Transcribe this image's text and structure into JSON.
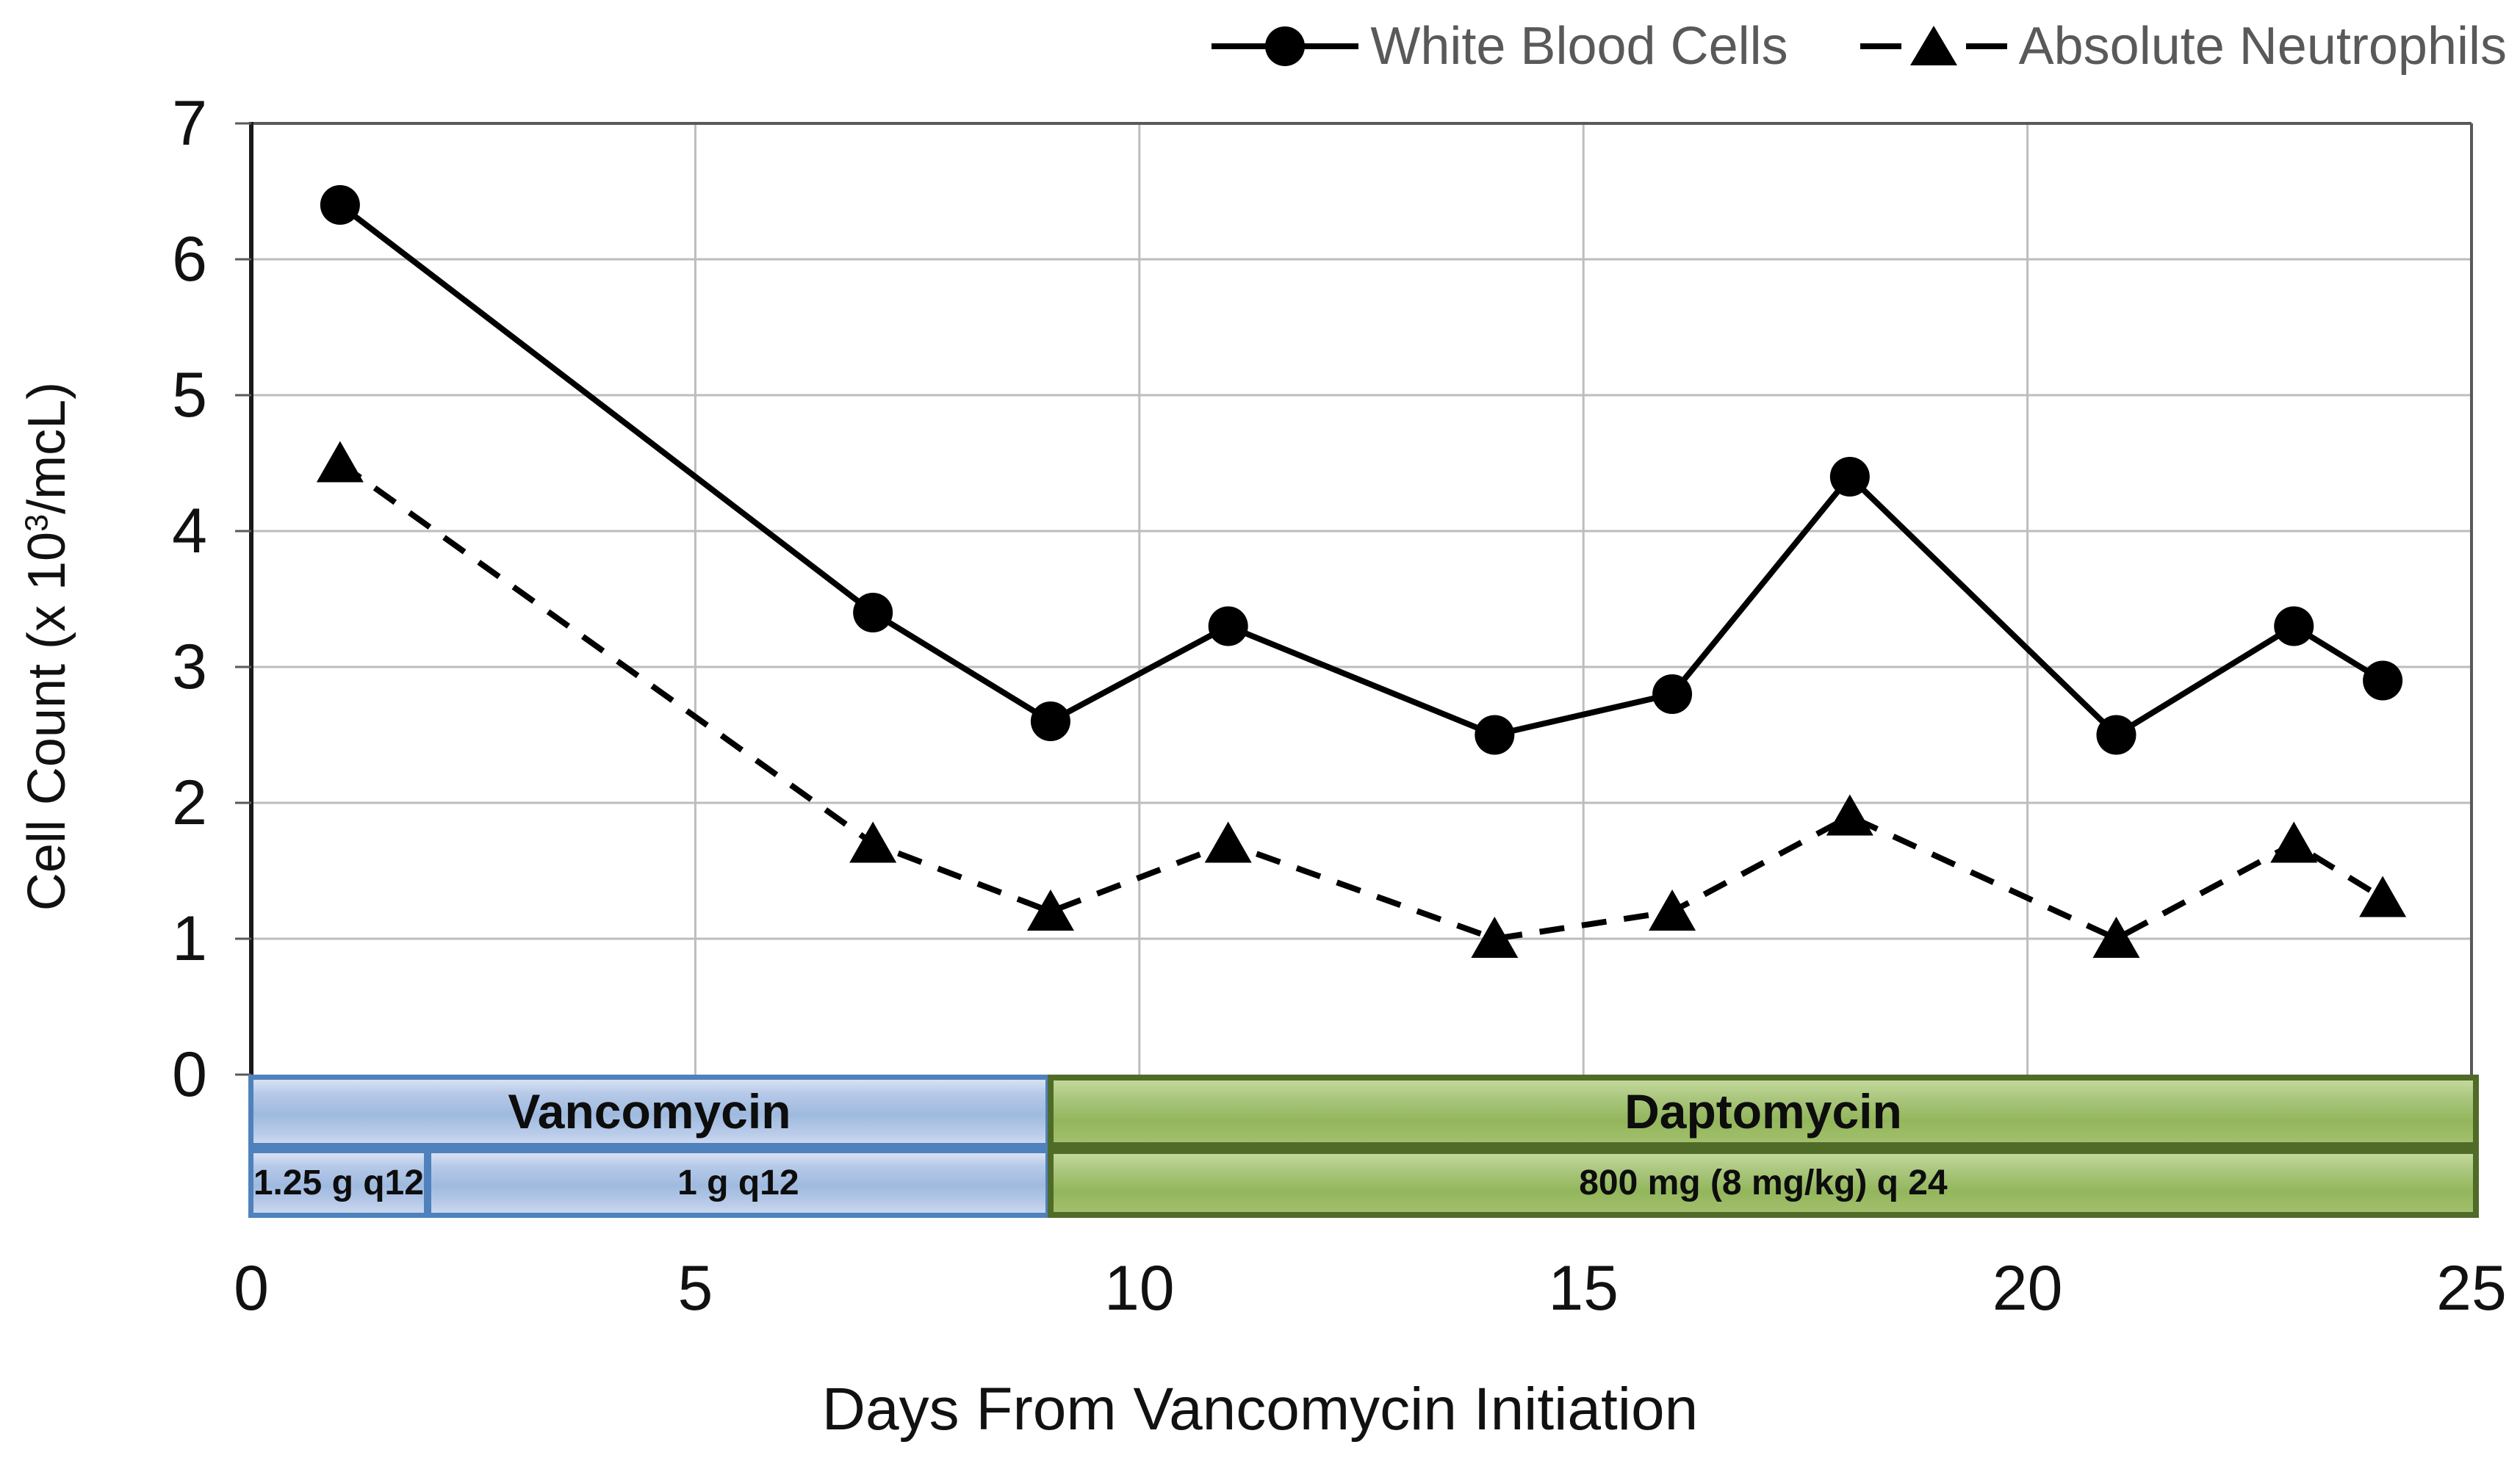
{
  "legend": {
    "items": [
      {
        "label": "White Blood Cells",
        "marker": "filled-circle",
        "line": "solid"
      },
      {
        "label": "Absolute Neutrophils",
        "marker": "filled-triangle",
        "line": "dashed"
      }
    ]
  },
  "axes": {
    "y": {
      "title_prefix": "Cell Count (x 10",
      "title_sup": "3",
      "title_suffix": "/mcL)",
      "ticks": [
        0,
        1,
        2,
        3,
        4,
        5,
        6,
        7
      ],
      "min": 0,
      "max": 7
    },
    "x": {
      "title": "Days From Vancomycin Initiation",
      "ticks": [
        0,
        5,
        10,
        15,
        20,
        25
      ],
      "min": 0,
      "max": 25
    }
  },
  "chart_data": {
    "type": "line",
    "title": "",
    "xlabel": "Days From Vancomycin Initiation",
    "ylabel": "Cell Count (x 10^3/mcL)",
    "xlim": [
      0,
      25
    ],
    "ylim": [
      0,
      7
    ],
    "grid": true,
    "legend_position": "top-right",
    "x": [
      1,
      7,
      9,
      11,
      14,
      16,
      18,
      21,
      23,
      24
    ],
    "series": [
      {
        "name": "White Blood Cells",
        "marker": "circle",
        "line": "solid",
        "color": "#000000",
        "values": [
          6.4,
          3.4,
          2.6,
          3.3,
          2.5,
          2.8,
          4.4,
          2.5,
          3.3,
          2.9
        ]
      },
      {
        "name": "Absolute Neutrophils",
        "marker": "triangle",
        "line": "dashed",
        "color": "#000000",
        "values": [
          4.5,
          1.7,
          1.2,
          1.7,
          1.0,
          1.2,
          1.9,
          1.0,
          1.7,
          1.3
        ]
      }
    ]
  },
  "treatment_bars": {
    "groups": [
      {
        "id": "vancomycin",
        "label": "Vancomycin",
        "start_day": 0,
        "end_day": 9,
        "fill": "#aec6e8",
        "border": "#4f81bd",
        "doses": [
          {
            "label": "1.25 g q12",
            "start_day": 0,
            "end_day": 2
          },
          {
            "label": "1 g q12",
            "start_day": 2,
            "end_day": 9
          }
        ]
      },
      {
        "id": "daptomycin",
        "label": "Daptomycin",
        "start_day": 9,
        "end_day": 25,
        "fill": "#9cbd5e",
        "border": "#506b28",
        "doses": [
          {
            "label": "800 mg (8 mg/kg) q 24",
            "start_day": 9,
            "end_day": 25
          }
        ]
      }
    ]
  },
  "style_colors": {
    "gridline": "#bdbdbd",
    "plot_border": "#595959",
    "y_axis_line": "#1a1a1a",
    "legend_text": "#595959",
    "series": "#000000"
  }
}
